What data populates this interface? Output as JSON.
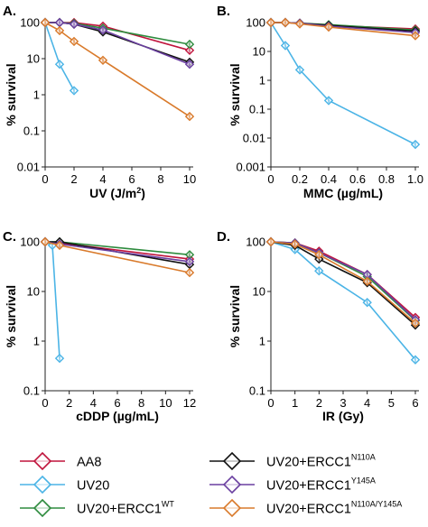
{
  "legend": {
    "entries": [
      {
        "key": "AA8",
        "label": "AA8",
        "superscript": "",
        "color": "#c0143c"
      },
      {
        "key": "UV20",
        "label": "UV20",
        "superscript": "",
        "color": "#4bb4e6"
      },
      {
        "key": "WT",
        "label": "UV20+ERCC1",
        "superscript": "WT",
        "color": "#2e8b3e"
      },
      {
        "key": "N110A",
        "label": "UV20+ERCC1",
        "superscript": "N110A",
        "color": "#111111"
      },
      {
        "key": "Y145A",
        "label": "UV20+ERCC1",
        "superscript": "Y145A",
        "color": "#6a3fa0"
      },
      {
        "key": "N110AY145A",
        "label": "UV20+ERCC1",
        "superscript": "N110A/Y145A",
        "color": "#d97a2b"
      }
    ]
  },
  "chart_data": [
    {
      "type": "line",
      "panel": "A.",
      "xlabel": "UV (J/m²)",
      "ylabel": "% survival",
      "y_scale": "log",
      "ylim": [
        0.01,
        100
      ],
      "xlim": [
        0,
        10
      ],
      "x_ticks": [
        "0",
        "2",
        "4",
        "6",
        "8",
        "10"
      ],
      "y_ticks": [
        "0.01",
        "0.1",
        "1",
        "10",
        "100"
      ],
      "series": [
        {
          "name": "AA8",
          "x": [
            0,
            2,
            4,
            10
          ],
          "y": [
            100,
            100,
            80,
            17
          ]
        },
        {
          "name": "UV20",
          "x": [
            0,
            1,
            2
          ],
          "y": [
            100,
            7,
            1.3
          ]
        },
        {
          "name": "UV20+ERCC1WT",
          "x": [
            0,
            1,
            2,
            4,
            10
          ],
          "y": [
            100,
            100,
            95,
            70,
            25
          ]
        },
        {
          "name": "UV20+ERCC1N110A",
          "x": [
            0,
            1,
            2,
            4,
            10
          ],
          "y": [
            100,
            100,
            90,
            55,
            8
          ]
        },
        {
          "name": "UV20+ERCC1Y145A",
          "x": [
            0,
            1,
            2,
            4,
            10
          ],
          "y": [
            100,
            100,
            90,
            62,
            7
          ]
        },
        {
          "name": "UV20+ERCC1N110A/Y145A",
          "x": [
            0,
            1,
            2,
            4,
            10
          ],
          "y": [
            100,
            60,
            30,
            9,
            0.25
          ]
        }
      ]
    },
    {
      "type": "line",
      "panel": "B.",
      "xlabel": "MMC (µg/mL)",
      "ylabel": "% survival",
      "y_scale": "log",
      "ylim": [
        0.001,
        100
      ],
      "xlim": [
        0,
        1
      ],
      "x_ticks": [
        "0",
        "0.2",
        "0.4",
        "0.6",
        "0.8",
        "1.0"
      ],
      "y_ticks": [
        "0.001",
        "0.01",
        "0.1",
        "1",
        "10",
        "100"
      ],
      "series": [
        {
          "name": "AA8",
          "x": [
            0,
            0.1,
            0.2,
            0.4,
            1.0
          ],
          "y": [
            100,
            100,
            95,
            80,
            60
          ]
        },
        {
          "name": "UV20",
          "x": [
            0,
            0.1,
            0.2,
            0.4,
            1.0
          ],
          "y": [
            100,
            16,
            2.3,
            0.2,
            0.006
          ]
        },
        {
          "name": "UV20+ERCC1WT",
          "x": [
            0,
            0.1,
            0.2,
            0.4,
            1.0
          ],
          "y": [
            100,
            100,
            95,
            85,
            55
          ]
        },
        {
          "name": "UV20+ERCC1N110A",
          "x": [
            0,
            0.1,
            0.2,
            0.4,
            1.0
          ],
          "y": [
            100,
            100,
            95,
            80,
            50
          ]
        },
        {
          "name": "UV20+ERCC1Y145A",
          "x": [
            0,
            0.1,
            0.2,
            0.4,
            1.0
          ],
          "y": [
            100,
            100,
            95,
            75,
            45
          ]
        },
        {
          "name": "UV20+ERCC1N110A/Y145A",
          "x": [
            0,
            0.1,
            0.2,
            0.4,
            1.0
          ],
          "y": [
            100,
            100,
            90,
            70,
            35
          ]
        }
      ]
    },
    {
      "type": "line",
      "panel": "C.",
      "xlabel": "cDDP (µg/mL)",
      "ylabel": "% survival",
      "y_scale": "log",
      "ylim": [
        0.1,
        100
      ],
      "xlim": [
        0,
        12
      ],
      "x_ticks": [
        "0",
        "2",
        "4",
        "6",
        "8",
        "10",
        "12"
      ],
      "y_ticks": [
        "0.1",
        "1",
        "10",
        "100"
      ],
      "series": [
        {
          "name": "AA8",
          "x": [
            0,
            1.2,
            12
          ],
          "y": [
            100,
            95,
            45
          ]
        },
        {
          "name": "UV20",
          "x": [
            0,
            0.6,
            1.2
          ],
          "y": [
            100,
            85,
            0.45
          ]
        },
        {
          "name": "UV20+ERCC1WT",
          "x": [
            0,
            1.2,
            12
          ],
          "y": [
            100,
            100,
            55
          ]
        },
        {
          "name": "UV20+ERCC1N110A",
          "x": [
            0,
            1.2,
            12
          ],
          "y": [
            100,
            100,
            35
          ]
        },
        {
          "name": "UV20+ERCC1Y145A",
          "x": [
            0,
            1.2,
            12
          ],
          "y": [
            100,
            90,
            40
          ]
        },
        {
          "name": "UV20+ERCC1N110A/Y145A",
          "x": [
            0,
            1.2,
            12
          ],
          "y": [
            100,
            85,
            24
          ]
        }
      ]
    },
    {
      "type": "line",
      "panel": "D.",
      "xlabel": "IR (Gy)",
      "ylabel": "% survival",
      "y_scale": "log",
      "ylim": [
        0.1,
        100
      ],
      "xlim": [
        0,
        6
      ],
      "x_ticks": [
        "0",
        "1",
        "2",
        "3",
        "4",
        "5",
        "6"
      ],
      "y_ticks": [
        "0.1",
        "1",
        "10",
        "100"
      ],
      "series": [
        {
          "name": "AA8",
          "x": [
            0,
            1,
            2,
            4,
            6
          ],
          "y": [
            100,
            95,
            65,
            22,
            3
          ]
        },
        {
          "name": "UV20",
          "x": [
            0,
            1,
            2,
            4,
            6
          ],
          "y": [
            100,
            70,
            26,
            6,
            0.42
          ]
        },
        {
          "name": "UV20+ERCC1WT",
          "x": [
            0,
            1,
            2,
            4,
            6
          ],
          "y": [
            100,
            95,
            60,
            20,
            2.6
          ]
        },
        {
          "name": "UV20+ERCC1N110A",
          "x": [
            0,
            1,
            2,
            4,
            6
          ],
          "y": [
            100,
            85,
            45,
            15,
            2.1
          ]
        },
        {
          "name": "UV20+ERCC1Y145A",
          "x": [
            0,
            1,
            2,
            4,
            6
          ],
          "y": [
            100,
            95,
            60,
            22,
            2.7
          ]
        },
        {
          "name": "UV20+ERCC1N110A/Y145A",
          "x": [
            0,
            1,
            2,
            4,
            6
          ],
          "y": [
            100,
            90,
            55,
            16,
            2.3
          ]
        }
      ]
    }
  ]
}
